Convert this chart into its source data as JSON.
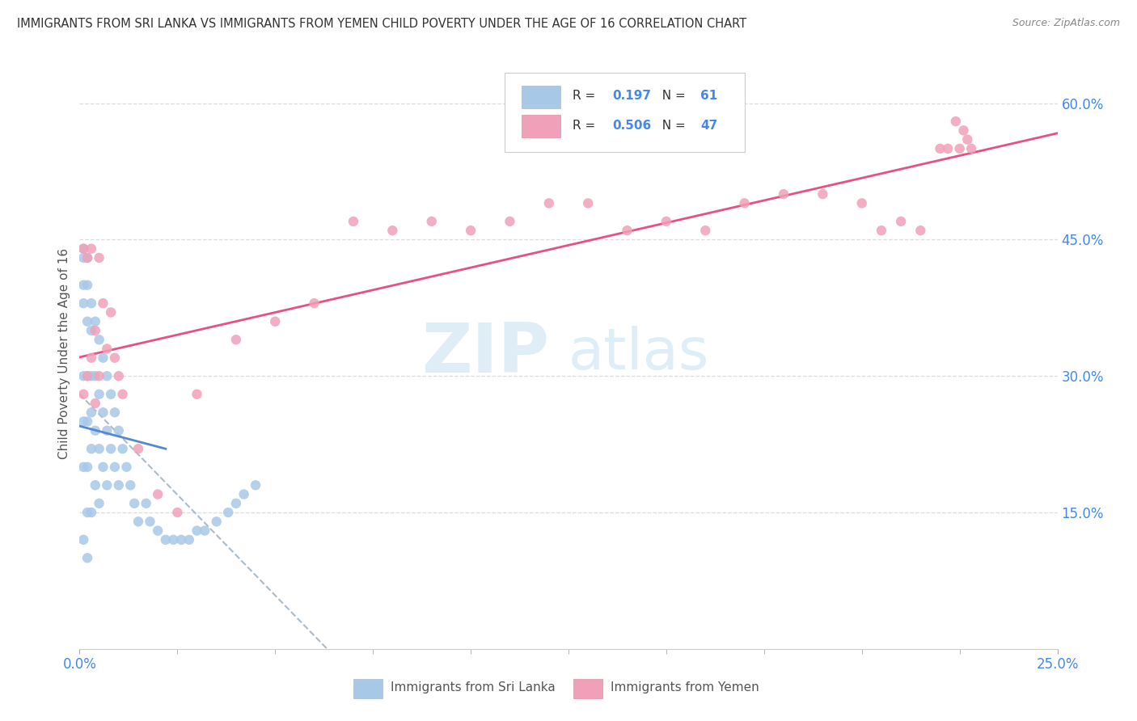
{
  "title": "IMMIGRANTS FROM SRI LANKA VS IMMIGRANTS FROM YEMEN CHILD POVERTY UNDER THE AGE OF 16 CORRELATION CHART",
  "source": "Source: ZipAtlas.com",
  "ylabel": "Child Poverty Under the Age of 16",
  "sri_lanka_color": "#a8c8e8",
  "yemen_color": "#f0a0b8",
  "sri_lanka_line_color": "#5588cc",
  "yemen_line_color": "#e85080",
  "sri_lanka_dash_color": "#aabbcc",
  "sri_lanka_R": 0.197,
  "sri_lanka_N": 61,
  "yemen_R": 0.506,
  "yemen_N": 47,
  "xlim": [
    0.0,
    0.25
  ],
  "ylim": [
    0.0,
    0.65
  ],
  "xtick_vals": [
    0.0,
    0.25
  ],
  "xtick_labels": [
    "0.0%",
    "25.0%"
  ],
  "ytick_vals": [
    0.15,
    0.3,
    0.45,
    0.6
  ],
  "ytick_labels": [
    "15.0%",
    "30.0%",
    "45.0%",
    "60.0%"
  ],
  "watermark_zip": "ZIP",
  "watermark_atlas": "atlas",
  "background_color": "#ffffff",
  "grid_color": "#dddddd",
  "sri_lanka_x": [
    0.001,
    0.001,
    0.001,
    0.001,
    0.001,
    0.001,
    0.001,
    0.001,
    0.002,
    0.002,
    0.002,
    0.002,
    0.002,
    0.002,
    0.002,
    0.002,
    0.003,
    0.003,
    0.003,
    0.003,
    0.003,
    0.003,
    0.004,
    0.004,
    0.004,
    0.004,
    0.005,
    0.005,
    0.005,
    0.005,
    0.006,
    0.006,
    0.006,
    0.007,
    0.007,
    0.007,
    0.008,
    0.008,
    0.009,
    0.009,
    0.01,
    0.01,
    0.011,
    0.012,
    0.013,
    0.014,
    0.015,
    0.017,
    0.018,
    0.02,
    0.022,
    0.024,
    0.026,
    0.028,
    0.03,
    0.032,
    0.035,
    0.038,
    0.04,
    0.042,
    0.045
  ],
  "sri_lanka_y": [
    0.38,
    0.43,
    0.44,
    0.4,
    0.3,
    0.25,
    0.2,
    0.12,
    0.43,
    0.4,
    0.36,
    0.3,
    0.25,
    0.2,
    0.15,
    0.1,
    0.38,
    0.35,
    0.3,
    0.26,
    0.22,
    0.15,
    0.36,
    0.3,
    0.24,
    0.18,
    0.34,
    0.28,
    0.22,
    0.16,
    0.32,
    0.26,
    0.2,
    0.3,
    0.24,
    0.18,
    0.28,
    0.22,
    0.26,
    0.2,
    0.24,
    0.18,
    0.22,
    0.2,
    0.18,
    0.16,
    0.14,
    0.16,
    0.14,
    0.13,
    0.12,
    0.12,
    0.12,
    0.12,
    0.13,
    0.13,
    0.14,
    0.15,
    0.16,
    0.17,
    0.18
  ],
  "yemen_x": [
    0.001,
    0.001,
    0.002,
    0.002,
    0.003,
    0.003,
    0.004,
    0.004,
    0.005,
    0.005,
    0.006,
    0.007,
    0.008,
    0.009,
    0.01,
    0.011,
    0.015,
    0.02,
    0.025,
    0.03,
    0.04,
    0.05,
    0.06,
    0.07,
    0.08,
    0.09,
    0.1,
    0.11,
    0.12,
    0.13,
    0.14,
    0.15,
    0.16,
    0.17,
    0.18,
    0.19,
    0.2,
    0.205,
    0.21,
    0.215,
    0.22,
    0.222,
    0.224,
    0.225,
    0.226,
    0.227,
    0.228
  ],
  "yemen_y": [
    0.28,
    0.44,
    0.43,
    0.3,
    0.44,
    0.32,
    0.35,
    0.27,
    0.43,
    0.3,
    0.38,
    0.33,
    0.37,
    0.32,
    0.3,
    0.28,
    0.22,
    0.17,
    0.15,
    0.28,
    0.34,
    0.36,
    0.38,
    0.47,
    0.46,
    0.47,
    0.46,
    0.47,
    0.49,
    0.49,
    0.46,
    0.47,
    0.46,
    0.49,
    0.5,
    0.5,
    0.49,
    0.46,
    0.47,
    0.46,
    0.55,
    0.55,
    0.58,
    0.55,
    0.57,
    0.56,
    0.55
  ]
}
